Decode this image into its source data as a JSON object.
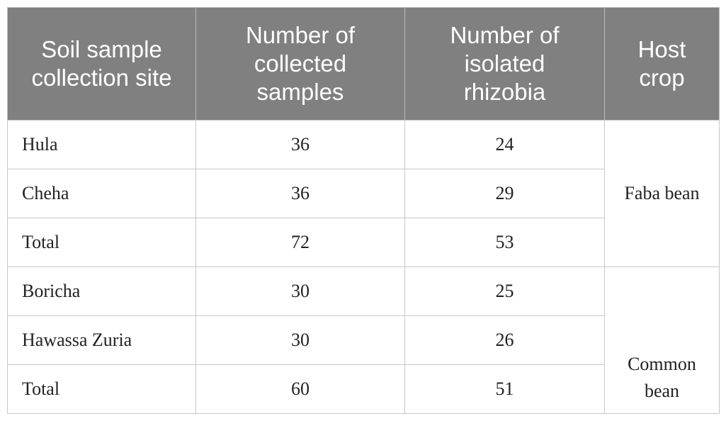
{
  "table": {
    "headers": [
      "Soil sample collection site",
      "Number of collected samples",
      "Number of isolated rhizobia",
      "Host crop"
    ],
    "groups": [
      {
        "host_crop": "Faba bean",
        "rows": [
          [
            "Hula",
            "36",
            "24"
          ],
          [
            "Cheha",
            "36",
            "29"
          ],
          [
            "Total",
            "72",
            "53"
          ]
        ]
      },
      {
        "host_crop": "Common bean",
        "rows": [
          [
            "Boricha",
            "30",
            "25"
          ],
          [
            "Hawassa Zuria",
            "30",
            "26"
          ],
          [
            "Total",
            "60",
            "51"
          ]
        ]
      }
    ]
  }
}
